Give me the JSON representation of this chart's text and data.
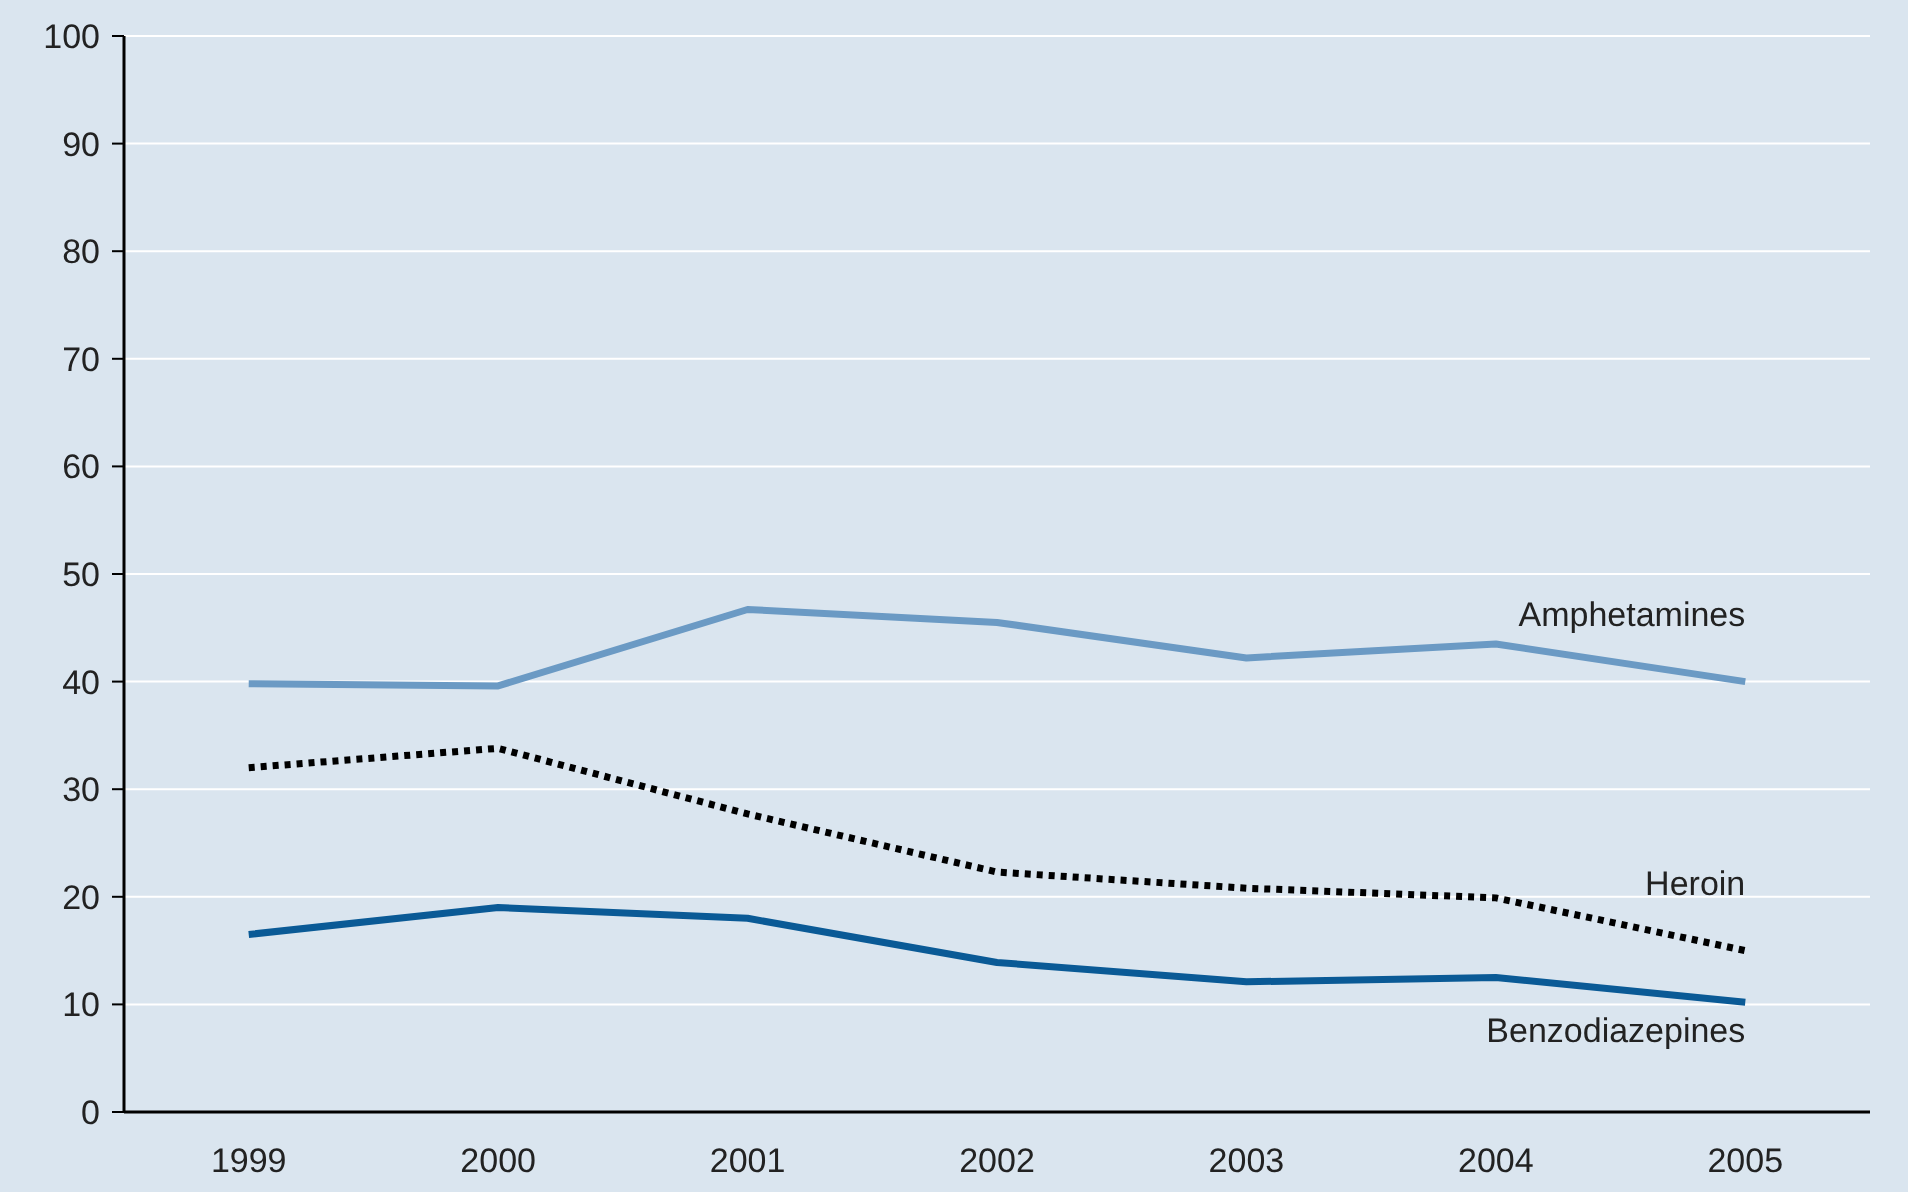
{
  "chart_data": {
    "type": "line",
    "categories": [
      "1999",
      "2000",
      "2001",
      "2002",
      "2003",
      "2004",
      "2005"
    ],
    "series": [
      {
        "name": "Amphetamines",
        "color": "#6b9ac4",
        "line_style": "solid",
        "values": [
          39.8,
          39.6,
          46.7,
          45.5,
          42.2,
          43.5,
          40
        ]
      },
      {
        "name": "Heroin",
        "color": "#000000",
        "line_style": "dotted",
        "values": [
          32,
          33.8,
          27.7,
          22.3,
          20.8,
          19.9,
          15
        ]
      },
      {
        "name": "Benzodiazepines",
        "color": "#0a5a96",
        "line_style": "solid",
        "values": [
          16.5,
          19,
          18,
          13.9,
          12.1,
          12.5,
          10.2
        ]
      }
    ],
    "ylim": [
      0,
      100
    ],
    "yticks": [
      0,
      10,
      20,
      30,
      40,
      50,
      60,
      70,
      80,
      90,
      100
    ],
    "grid": "y",
    "marker": "none"
  }
}
